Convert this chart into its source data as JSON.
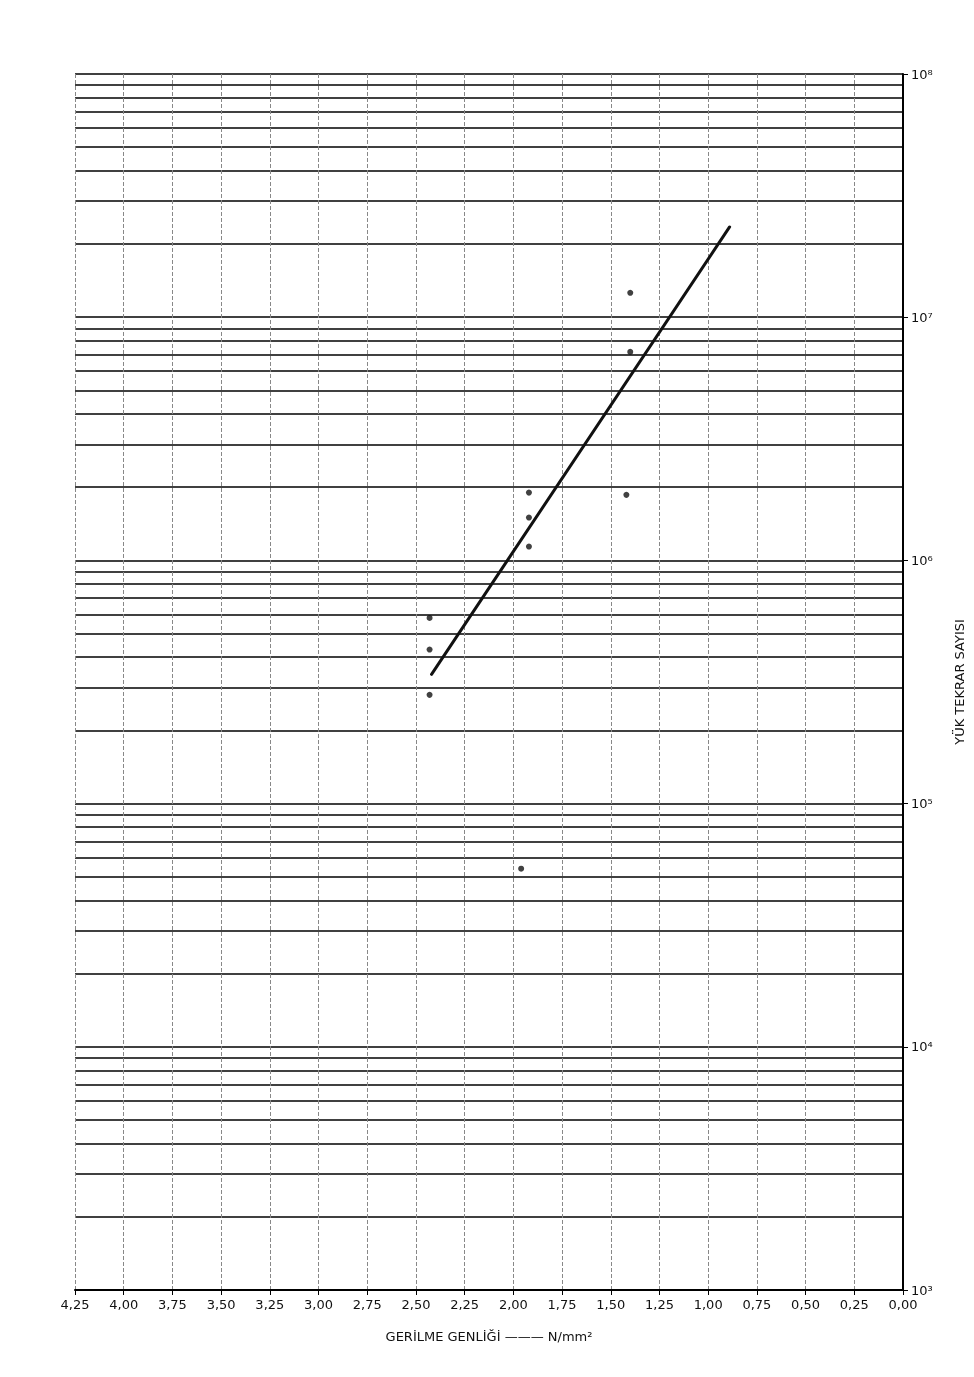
{
  "chart_data": {
    "type": "scatter",
    "xlabel": "GERİLME GENLİĞİ ——— N/mm²",
    "ylabel": "YÜK TEKRAR SAYISI",
    "log": "y",
    "xlim": [
      4.25,
      0
    ],
    "xticks": [
      {
        "value": 4.25,
        "label": "4,25"
      },
      {
        "value": 4,
        "label": "4,00"
      },
      {
        "value": 3.75,
        "label": "3,75"
      },
      {
        "value": 3.5,
        "label": "3,50"
      },
      {
        "value": 3.25,
        "label": "3,25"
      },
      {
        "value": 3,
        "label": "3,00"
      },
      {
        "value": 2.75,
        "label": "2,75"
      },
      {
        "value": 2.5,
        "label": "2,50"
      },
      {
        "value": 2.25,
        "label": "2,25"
      },
      {
        "value": 2,
        "label": "2,00"
      },
      {
        "value": 1.75,
        "label": "1,75"
      },
      {
        "value": 1.5,
        "label": "1,50"
      },
      {
        "value": 1.25,
        "label": "1,25"
      },
      {
        "value": 1,
        "label": "1,00"
      },
      {
        "value": 0.75,
        "label": "0,75"
      },
      {
        "value": 0.5,
        "label": "0,50"
      },
      {
        "value": 0.25,
        "label": "0,25"
      },
      {
        "value": 0,
        "label": "0,00"
      }
    ],
    "ylim": [
      1000,
      100000000
    ],
    "yticks": [
      {
        "value": 1000,
        "label": "10³"
      },
      {
        "value": 10000,
        "label": "10⁴"
      },
      {
        "value": 100000,
        "label": "10⁵"
      },
      {
        "value": 1000000,
        "label": "10⁶"
      },
      {
        "value": 10000000,
        "label": "10⁷"
      },
      {
        "value": 100000000,
        "label": "10⁸"
      }
    ],
    "grid": true,
    "marker": "circle",
    "series": [
      {
        "color": "#111111",
        "x": [
          2.43,
          2.43,
          2.43,
          1.92,
          1.92,
          1.92,
          1.96,
          1.42,
          1.4,
          1.4
        ],
        "values": [
          580000,
          430000,
          280000,
          1900000,
          1500000,
          1140000,
          54000,
          1860000,
          12600000,
          7200000
        ]
      },
      {
        "type": "line",
        "color": "#111111",
        "marker": "none",
        "x": [
          2.42,
          0.89
        ],
        "values": [
          340000,
          23500000
        ]
      }
    ]
  }
}
